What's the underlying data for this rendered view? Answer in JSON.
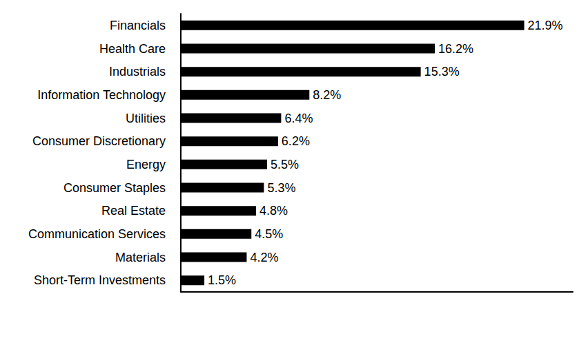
{
  "chart_data": {
    "type": "bar",
    "orientation": "horizontal",
    "categories": [
      "Financials",
      "Health Care",
      "Industrials",
      "Information Technology",
      "Utilities",
      "Consumer Discretionary",
      "Energy",
      "Consumer Staples",
      "Real Estate",
      "Communication Services",
      "Materials",
      "Short-Term Investments"
    ],
    "values": [
      21.9,
      16.2,
      15.3,
      8.2,
      6.4,
      6.2,
      5.5,
      5.3,
      4.8,
      4.5,
      4.2,
      1.5
    ],
    "value_labels": [
      "21.9%",
      "16.2%",
      "15.3%",
      "8.2%",
      "6.4%",
      "6.2%",
      "5.5%",
      "5.3%",
      "4.8%",
      "4.5%",
      "4.2%",
      "1.5%"
    ],
    "color": "#000000",
    "xlim": [
      0,
      25
    ],
    "grid": false,
    "data_labels": true,
    "tick_labels": "y"
  }
}
